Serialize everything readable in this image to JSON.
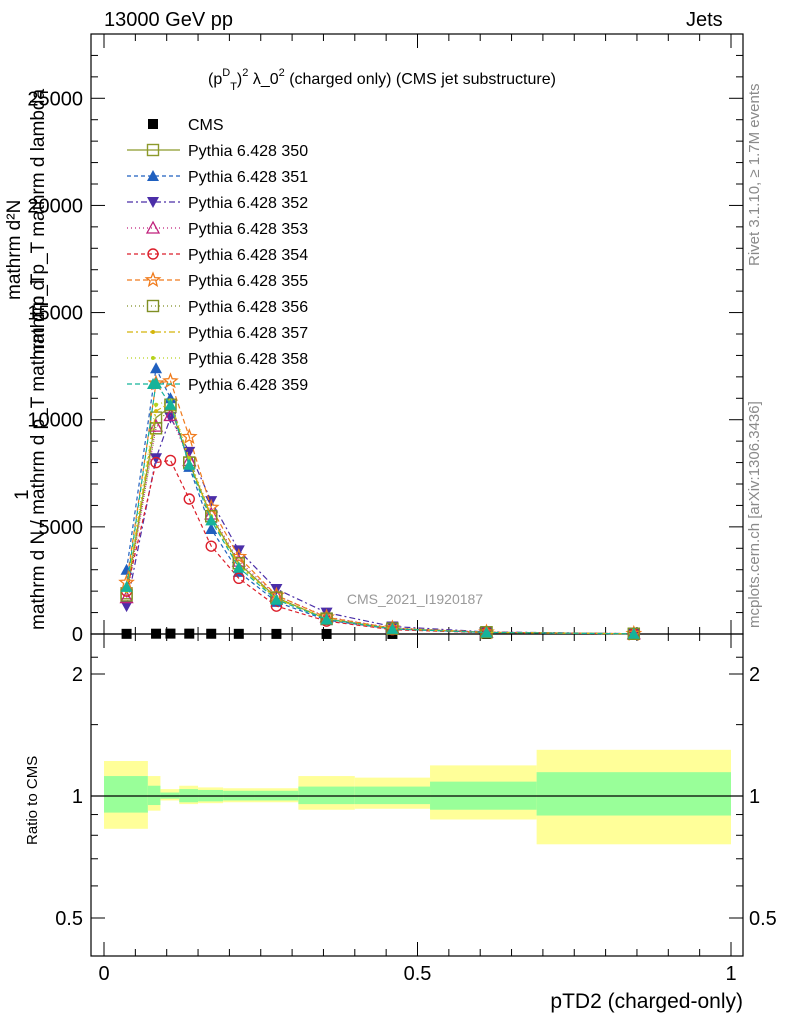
{
  "header": {
    "energy_label": "13000 GeV pp",
    "process_label": "Jets",
    "rivet_label": "Rivet 3.1.10, ≥ 1.7M events",
    "mcplots_label": "mcplots.cern.ch [arXiv:1306.3436]",
    "watermark": "CMS_2021_I1920187"
  },
  "chart_data": [
    {
      "type": "line",
      "title": "(p_T^D)^2 λ_0^2 (charged only) (CMS jet substructure)",
      "title_parts": {
        "base1": "(p",
        "sup1": "D",
        "sub1": "T",
        "close": ")",
        "sup2": "2",
        "rest": " λ_0",
        "sup3": "2",
        "tail": " (charged only) (CMS jet substructure)"
      },
      "ylabel_numerator": "1",
      "ylabel_fraction_top": "mathrm d²N",
      "ylabel_fraction_top_line2": "mathrm d p_T mathrm d lambda",
      "ylabel_denominator": "mathrm d N / mathrm d p_T mathrm d p_T",
      "xlim": [
        0,
        1
      ],
      "ylim": [
        0,
        28000
      ],
      "y_ticks": [
        0,
        5000,
        10000,
        15000,
        20000,
        25000
      ],
      "y_tick_labels": [
        "0",
        "5000",
        "10000",
        "15000",
        "20000",
        "25000"
      ],
      "x": [
        0.036,
        0.083,
        0.106,
        0.136,
        0.171,
        0.215,
        0.275,
        0.355,
        0.46,
        0.61,
        0.845
      ],
      "series": [
        {
          "name": "CMS",
          "color": "#000000",
          "marker": "square-filled",
          "dash": "none",
          "values": [
            8,
            14,
            18,
            16,
            12,
            8,
            5,
            3,
            1.5,
            0.6,
            0.2
          ]
        },
        {
          "name": "Pythia 6.428 350",
          "color": "#8c9a2b",
          "marker": "square-open",
          "dash": "solid",
          "values": [
            1900,
            10100,
            10600,
            8000,
            5500,
            3300,
            1700,
            700,
            250,
            80,
            10
          ]
        },
        {
          "name": "Pythia 6.428 351",
          "color": "#1f5fbf",
          "marker": "triangle-up-filled",
          "dash": "4,3",
          "values": [
            3000,
            12400,
            11000,
            7800,
            4900,
            2900,
            1500,
            650,
            230,
            70,
            10
          ]
        },
        {
          "name": "Pythia 6.428 352",
          "color": "#4b2ea8",
          "marker": "triangle-down-filled",
          "dash": "6,3,2,3",
          "values": [
            1300,
            8200,
            10100,
            8500,
            6200,
            3900,
            2100,
            1000,
            350,
            100,
            15
          ]
        },
        {
          "name": "Pythia 6.428 353",
          "color": "#c0207c",
          "marker": "triangle-up-open",
          "dash": "1,3",
          "values": [
            1700,
            9700,
            10200,
            8100,
            5600,
            3400,
            1800,
            800,
            280,
            85,
            12
          ]
        },
        {
          "name": "Pythia 6.428 354",
          "color": "#dc1f2b",
          "marker": "circle-open",
          "dash": "4,3",
          "values": [
            2000,
            8000,
            8100,
            6300,
            4100,
            2600,
            1300,
            600,
            200,
            60,
            8
          ]
        },
        {
          "name": "Pythia 6.428 355",
          "color": "#f07b1c",
          "marker": "star-open",
          "dash": "5,3",
          "values": [
            2400,
            11700,
            11800,
            9200,
            5900,
            3600,
            1800,
            780,
            270,
            80,
            12
          ]
        },
        {
          "name": "Pythia 6.428 356",
          "color": "#7f8f24",
          "marker": "square-open",
          "dash": "1,3",
          "values": [
            1800,
            9600,
            10700,
            8000,
            5500,
            3300,
            1700,
            720,
            255,
            80,
            11
          ]
        },
        {
          "name": "Pythia 6.428 357",
          "color": "#d4b50a",
          "marker": "dot",
          "dash": "6,3,2,3",
          "values": [
            2000,
            10400,
            10800,
            8100,
            5400,
            3200,
            1650,
            700,
            245,
            75,
            10
          ]
        },
        {
          "name": "Pythia 6.428 358",
          "color": "#b6d21c",
          "marker": "dot",
          "dash": "1,3",
          "values": [
            2100,
            10700,
            10900,
            8200,
            5500,
            3250,
            1680,
            710,
            250,
            78,
            10
          ]
        },
        {
          "name": "Pythia 6.428 359",
          "color": "#15b39a",
          "marker": "triangle-up-filled",
          "dash": "5,3",
          "values": [
            2200,
            11700,
            10700,
            7900,
            5300,
            3100,
            1600,
            690,
            240,
            72,
            10
          ]
        }
      ]
    },
    {
      "type": "area",
      "ylabel": "Ratio to CMS",
      "xlabel": "pTD2 (charged-only)",
      "xlim": [
        0,
        1
      ],
      "ylim": [
        0.4,
        2.3
      ],
      "y_ticks": [
        0.5,
        1,
        2
      ],
      "y_tick_labels": [
        "0.5",
        "1",
        "2"
      ],
      "x_ticks": [
        0,
        0.5,
        1
      ],
      "x_tick_labels": [
        "0",
        "0.5",
        "1"
      ],
      "reference_value": 1,
      "bin_edges": [
        0,
        0.07,
        0.09,
        0.12,
        0.15,
        0.19,
        0.24,
        0.31,
        0.4,
        0.52,
        0.69,
        1.0
      ],
      "stat_band": {
        "color": "#99ff99",
        "low": [
          0.91,
          0.95,
          0.985,
          0.965,
          0.97,
          0.975,
          0.975,
          0.955,
          0.955,
          0.925,
          0.895
        ],
        "high": [
          1.12,
          1.06,
          1.02,
          1.04,
          1.035,
          1.03,
          1.03,
          1.055,
          1.055,
          1.085,
          1.145
        ]
      },
      "total_band": {
        "color": "#ffff99",
        "low": [
          0.83,
          0.92,
          0.975,
          0.955,
          0.96,
          0.965,
          0.965,
          0.925,
          0.93,
          0.875,
          0.76
        ],
        "high": [
          1.22,
          1.12,
          1.04,
          1.06,
          1.05,
          1.045,
          1.045,
          1.12,
          1.11,
          1.19,
          1.3
        ]
      }
    }
  ]
}
